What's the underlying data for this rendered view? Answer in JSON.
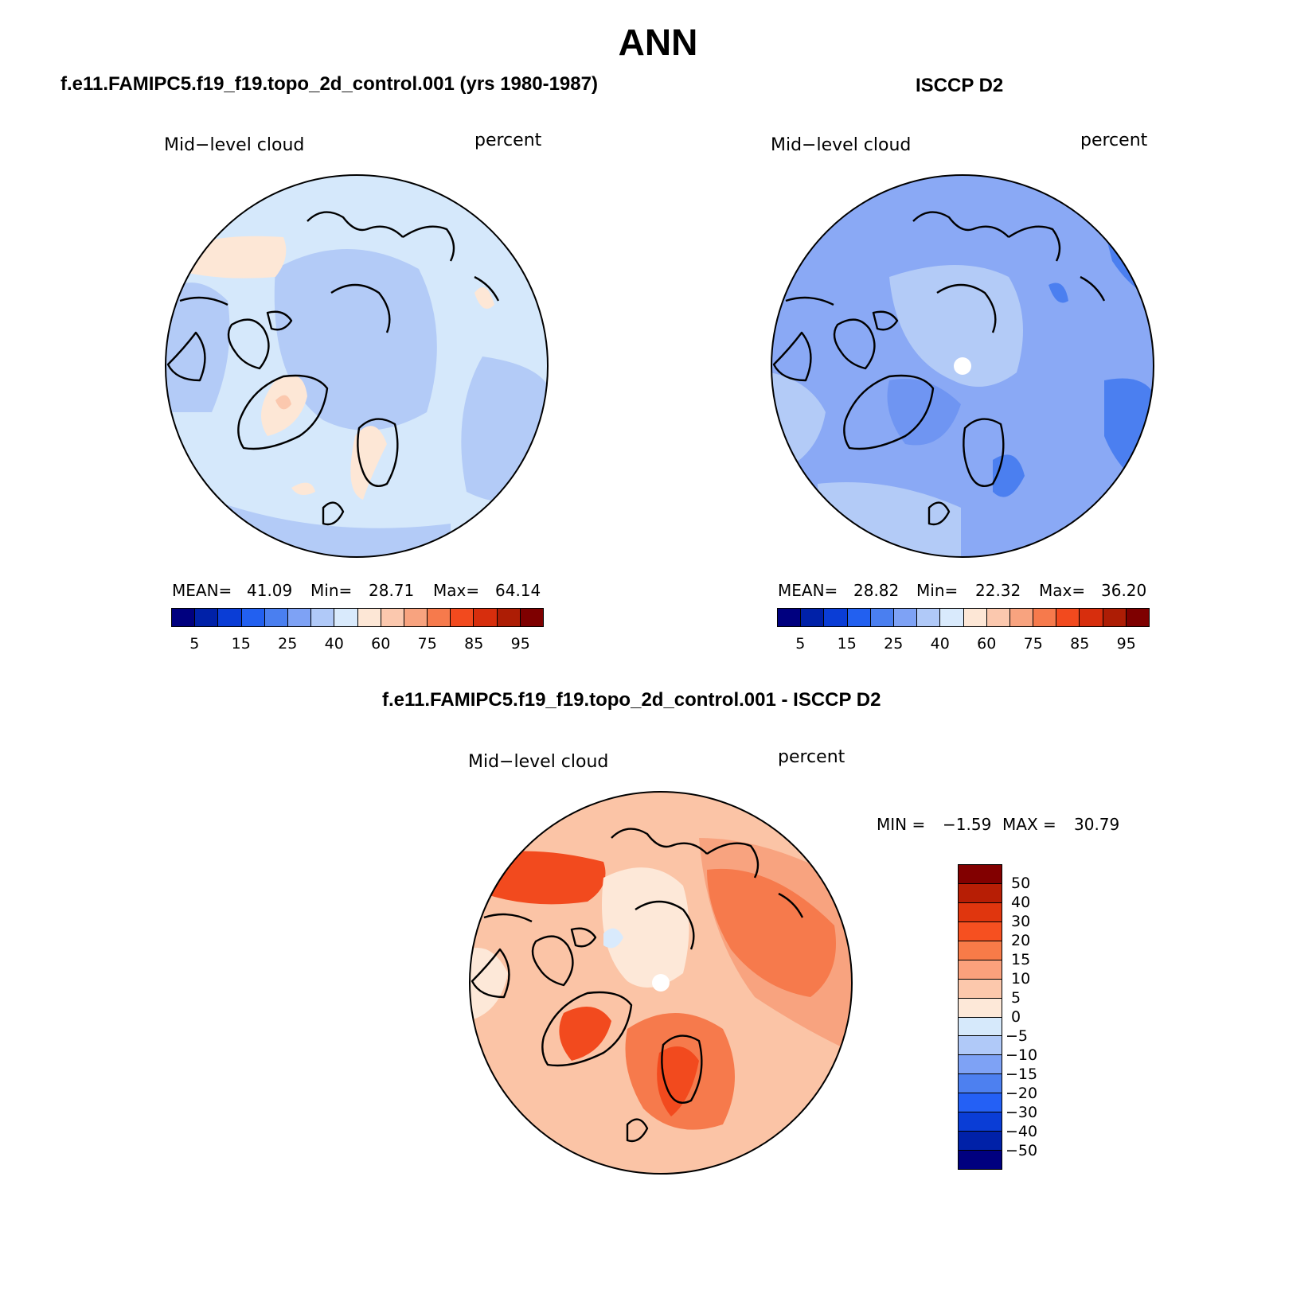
{
  "title": "ANN",
  "panels": [
    {
      "id": "model",
      "header": "f.e11.FAMIPC5.f19_f19.topo_2d_control.001 (yrs 1980-1987)",
      "variable": "Mid−level cloud",
      "units": "percent",
      "stats": {
        "mean_label": "MEAN=",
        "mean": "41.09",
        "min_label": "Min=",
        "min": "28.71",
        "max_label": "Max=",
        "max": "64.14"
      },
      "background": "#d5e8fb"
    },
    {
      "id": "obs",
      "header": "ISCCP D2",
      "variable": "Mid−level cloud",
      "units": "percent",
      "stats": {
        "mean_label": "MEAN=",
        "mean": "28.82",
        "min_label": "Min=",
        "min": "22.32",
        "max_label": "Max=",
        "max": "36.20"
      },
      "background": "#8aa9f5"
    },
    {
      "id": "diff",
      "header": "f.e11.FAMIPC5.f19_f19.topo_2d_control.001 - ISCCP D2",
      "variable": "Mid−level cloud",
      "units": "percent",
      "stats": {
        "min_label": "MIN =",
        "min": "−1.59",
        "max_label": "MAX =",
        "max": "30.79"
      },
      "background": "#fbc4a6"
    }
  ],
  "colorbar_abs": {
    "colors": [
      "#00007f",
      "#0021a8",
      "#0a3dd6",
      "#2260f0",
      "#4a7ff0",
      "#7ea2f5",
      "#b0c9f8",
      "#d9eafc",
      "#fde7d6",
      "#fbc8ae",
      "#f8a37f",
      "#f67a4c",
      "#f24a1e",
      "#d72e0d",
      "#ad1d05",
      "#7e0000"
    ],
    "tick_labels": [
      "5",
      "15",
      "25",
      "40",
      "60",
      "75",
      "85",
      "95"
    ]
  },
  "colorbar_diff": {
    "colors_top_to_bottom": [
      "#820000",
      "#b71e05",
      "#e0360e",
      "#f65020",
      "#f87b48",
      "#fba17c",
      "#fcc8ac",
      "#fde8d8",
      "#d6e9fb",
      "#b0c9f8",
      "#7ea2f5",
      "#4d80f0",
      "#2460f5",
      "#0a3dd6",
      "#0021a8",
      "#00007f"
    ],
    "tick_labels": [
      "50",
      "40",
      "30",
      "20",
      "15",
      "10",
      "5",
      "0",
      "−5",
      "−10",
      "−15",
      "−20",
      "−30",
      "−40",
      "−50"
    ]
  },
  "map_colors": {
    "model": {
      "base": "#d5e8fb",
      "medium": "#b3cbf7",
      "light_blue": "#d9eafc",
      "peach": "#fde7d6",
      "salmon": "#fbc8ae"
    },
    "obs": {
      "base": "#8aa9f5",
      "light": "#b3cbf7",
      "medium": "#6f95f2",
      "dark": "#4b7ff0",
      "pole": "#ffffff"
    },
    "diff": {
      "base": "#fbc4a6",
      "orange": "#f8a37f",
      "deep": "#f67a4c",
      "red": "#f24a1e",
      "pale": "#fde8d8",
      "light_blue": "#d9eafc",
      "pole": "#ffffff"
    }
  }
}
